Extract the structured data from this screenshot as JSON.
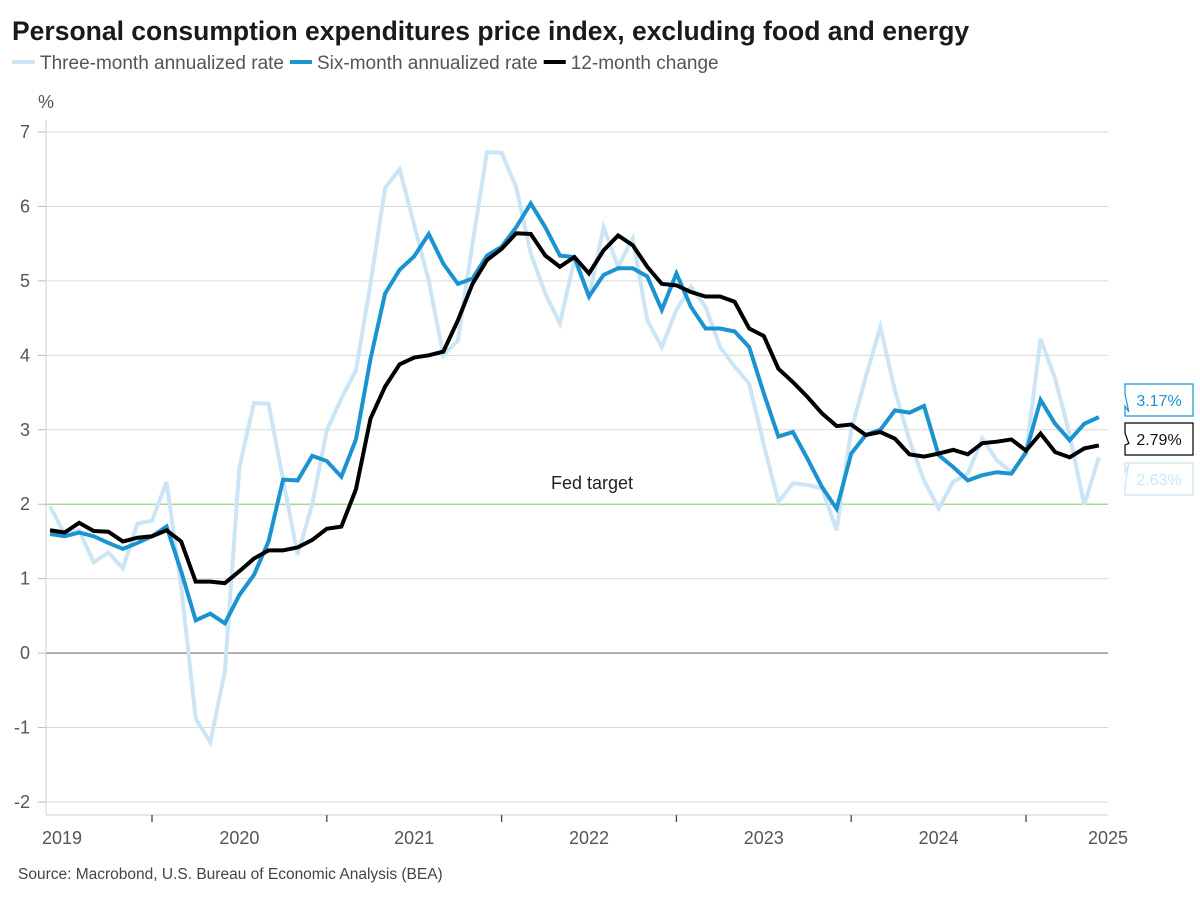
{
  "chart_data": {
    "type": "line",
    "title": "Personal consumption expenditures price index, excluding food and energy",
    "ylabel": "%",
    "source": "Source: Macrobond, U.S. Bureau of Economic Analysis (BEA)",
    "ylim": [
      -2,
      7
    ],
    "yticks": [
      "-2",
      "-1",
      "0",
      "1",
      "2",
      "3",
      "4",
      "5",
      "6",
      "7"
    ],
    "xticks": [
      "2019",
      "2020",
      "2021",
      "2022",
      "2023",
      "2024",
      "2025"
    ],
    "grid": true,
    "legend_position": "top-left",
    "reference_line": {
      "label": "Fed target",
      "value": 2,
      "color": "#9fd28a"
    },
    "x": [
      "2019-06",
      "2019-07",
      "2019-08",
      "2019-09",
      "2019-10",
      "2019-11",
      "2019-12",
      "2020-01",
      "2020-02",
      "2020-03",
      "2020-04",
      "2020-05",
      "2020-06",
      "2020-07",
      "2020-08",
      "2020-09",
      "2020-10",
      "2020-11",
      "2020-12",
      "2021-01",
      "2021-02",
      "2021-03",
      "2021-04",
      "2021-05",
      "2021-06",
      "2021-07",
      "2021-08",
      "2021-09",
      "2021-10",
      "2021-11",
      "2021-12",
      "2022-01",
      "2022-02",
      "2022-03",
      "2022-04",
      "2022-05",
      "2022-06",
      "2022-07",
      "2022-08",
      "2022-09",
      "2022-10",
      "2022-11",
      "2022-12",
      "2023-01",
      "2023-02",
      "2023-03",
      "2023-04",
      "2023-05",
      "2023-06",
      "2023-07",
      "2023-08",
      "2023-09",
      "2023-10",
      "2023-11",
      "2023-12",
      "2024-01",
      "2024-02",
      "2024-03",
      "2024-04",
      "2024-05",
      "2024-06",
      "2024-07",
      "2024-08",
      "2024-09",
      "2024-10",
      "2024-11",
      "2024-12",
      "2025-01",
      "2025-02",
      "2025-03",
      "2025-04",
      "2025-05",
      "2025-06"
    ],
    "series": [
      {
        "name": "Three-month annualized rate",
        "color": "#cce5f6",
        "last_label": "2.63%",
        "values": [
          1.97,
          1.6,
          1.65,
          1.22,
          1.35,
          1.14,
          1.74,
          1.78,
          2.3,
          0.9,
          -0.88,
          -1.2,
          -0.25,
          2.5,
          3.36,
          3.35,
          2.33,
          1.32,
          2.0,
          2.99,
          3.42,
          3.8,
          4.96,
          6.25,
          6.5,
          5.75,
          5.0,
          4.0,
          4.2,
          5.5,
          6.73,
          6.72,
          6.26,
          5.37,
          4.83,
          4.43,
          5.28,
          4.79,
          5.72,
          5.19,
          5.57,
          4.47,
          4.11,
          4.61,
          4.92,
          4.65,
          4.11,
          3.85,
          3.62,
          2.8,
          2.03,
          2.28,
          2.26,
          2.21,
          1.65,
          2.99,
          3.71,
          4.38,
          3.53,
          2.86,
          2.32,
          1.94,
          2.3,
          2.41,
          2.88,
          2.59,
          2.43,
          2.68,
          4.22,
          3.69,
          2.93,
          1.99,
          2.63
        ]
      },
      {
        "name": "Six-month annualized rate",
        "color": "#1b93d1",
        "last_label": "3.17%",
        "values": [
          1.6,
          1.57,
          1.62,
          1.57,
          1.48,
          1.4,
          1.48,
          1.57,
          1.7,
          1.1,
          0.44,
          0.53,
          0.4,
          0.78,
          1.05,
          1.5,
          2.33,
          2.32,
          2.65,
          2.58,
          2.37,
          2.87,
          3.95,
          4.83,
          5.15,
          5.33,
          5.63,
          5.23,
          4.96,
          5.03,
          5.34,
          5.46,
          5.72,
          6.04,
          5.72,
          5.34,
          5.32,
          4.79,
          5.08,
          5.17,
          5.17,
          5.06,
          4.61,
          5.1,
          4.65,
          4.36,
          4.36,
          4.32,
          4.11,
          3.49,
          2.91,
          2.97,
          2.61,
          2.23,
          1.94,
          2.68,
          2.93,
          3.0,
          3.26,
          3.23,
          3.32,
          2.66,
          2.5,
          2.32,
          2.39,
          2.43,
          2.41,
          2.7,
          3.4,
          3.08,
          2.86,
          3.08,
          3.17
        ]
      },
      {
        "name": "12-month change",
        "color": "#000000",
        "last_label": "2.79%",
        "values": [
          1.65,
          1.62,
          1.75,
          1.64,
          1.63,
          1.5,
          1.55,
          1.57,
          1.65,
          1.5,
          0.96,
          0.96,
          0.94,
          1.1,
          1.27,
          1.38,
          1.38,
          1.42,
          1.52,
          1.67,
          1.7,
          2.2,
          3.15,
          3.58,
          3.88,
          3.97,
          4.0,
          4.05,
          4.47,
          4.96,
          5.28,
          5.43,
          5.64,
          5.63,
          5.34,
          5.19,
          5.32,
          5.1,
          5.41,
          5.61,
          5.48,
          5.19,
          4.96,
          4.94,
          4.85,
          4.79,
          4.79,
          4.72,
          4.36,
          4.26,
          3.82,
          3.64,
          3.44,
          3.22,
          3.05,
          3.07,
          2.93,
          2.97,
          2.88,
          2.67,
          2.64,
          2.68,
          2.73,
          2.67,
          2.82,
          2.84,
          2.87,
          2.72,
          2.95,
          2.7,
          2.63,
          2.75,
          2.79
        ]
      }
    ]
  }
}
